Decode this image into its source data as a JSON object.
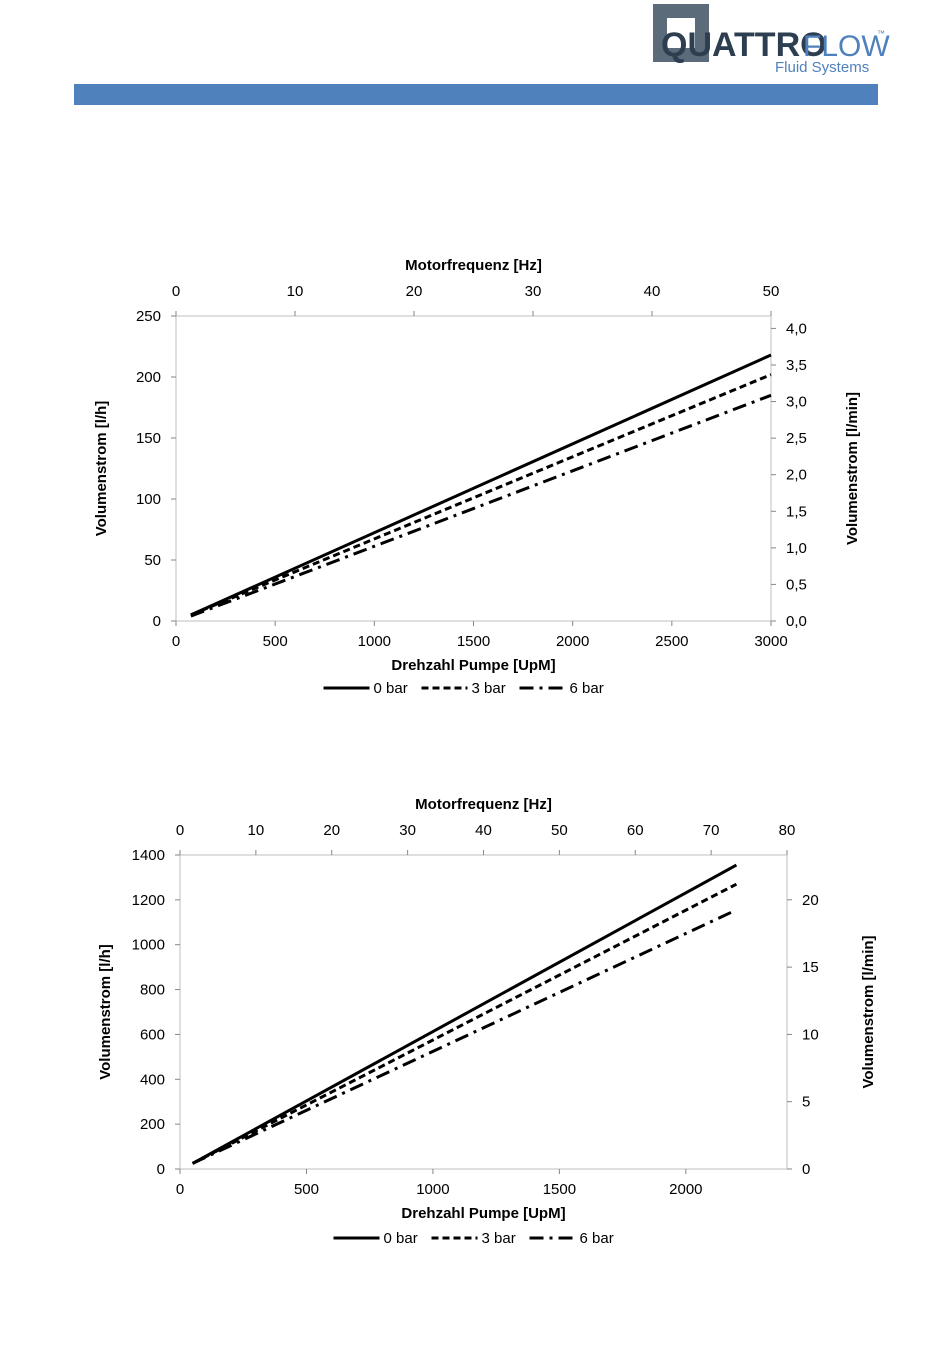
{
  "logo": {
    "brand_bold": "QUATTRO",
    "brand_light": "FLOW",
    "trademark": "™",
    "tagline": "Fluid Systems"
  },
  "chart_data": [
    {
      "type": "line",
      "x_top_title": "Motorfrequenz [Hz]",
      "x_top_range": [
        0,
        50
      ],
      "x_top_ticks": [
        "0",
        "10",
        "20",
        "30",
        "40",
        "50"
      ],
      "xlabel": "Drehzahl Pumpe [UpM]",
      "xlim": [
        0,
        3000
      ],
      "x_ticks": [
        "0",
        "500",
        "1000",
        "1500",
        "2000",
        "2500",
        "3000"
      ],
      "ylabel": "Volumenstrom [l/h]",
      "ylim": [
        0,
        250
      ],
      "y_ticks": [
        "0",
        "50",
        "100",
        "150",
        "200",
        "250"
      ],
      "y2label": "Volumenstrom [l/min]",
      "y2lim": [
        0,
        4.17
      ],
      "y2_ticks": [
        "0,0",
        "0,5",
        "1,0",
        "1,5",
        "2,0",
        "2,5",
        "3,0",
        "3,5",
        "4,0"
      ],
      "grid": false,
      "legend": "bottom",
      "series": [
        {
          "name": "0 bar",
          "dash": "solid",
          "x": [
            75,
            3000
          ],
          "y": [
            5,
            218
          ]
        },
        {
          "name": "3 bar",
          "dash": "dashed",
          "x": [
            75,
            3000
          ],
          "y": [
            5,
            202
          ]
        },
        {
          "name": "6 bar",
          "dash": "dashdot",
          "x": [
            75,
            3000
          ],
          "y": [
            4,
            185
          ]
        }
      ]
    },
    {
      "type": "line",
      "x_top_title": "Motorfrequenz [Hz]",
      "x_top_range": [
        0,
        80
      ],
      "x_top_ticks": [
        "0",
        "10",
        "20",
        "30",
        "40",
        "50",
        "60",
        "70",
        "80"
      ],
      "xlabel": "Drehzahl Pumpe [UpM]",
      "xlim": [
        0,
        2400
      ],
      "x_ticks": [
        "0",
        "500",
        "1000",
        "1500",
        "2000"
      ],
      "ylabel": "Volumenstrom [l/h]",
      "ylim": [
        0,
        1400
      ],
      "y_ticks": [
        "0",
        "200",
        "400",
        "600",
        "800",
        "1000",
        "1200",
        "1400"
      ],
      "y2label": "Volumenstrom [l/min]",
      "y2lim": [
        0,
        23.33
      ],
      "y2_ticks": [
        "0",
        "5",
        "10",
        "15",
        "20"
      ],
      "grid": false,
      "legend": "bottom",
      "series": [
        {
          "name": "0 bar",
          "dash": "solid",
          "x": [
            50,
            2200
          ],
          "y": [
            25,
            1355
          ]
        },
        {
          "name": "3 bar",
          "dash": "dashed",
          "x": [
            50,
            2200
          ],
          "y": [
            25,
            1270
          ]
        },
        {
          "name": "6 bar",
          "dash": "dashdot",
          "x": [
            50,
            2200
          ],
          "y": [
            25,
            1155
          ]
        }
      ]
    }
  ]
}
